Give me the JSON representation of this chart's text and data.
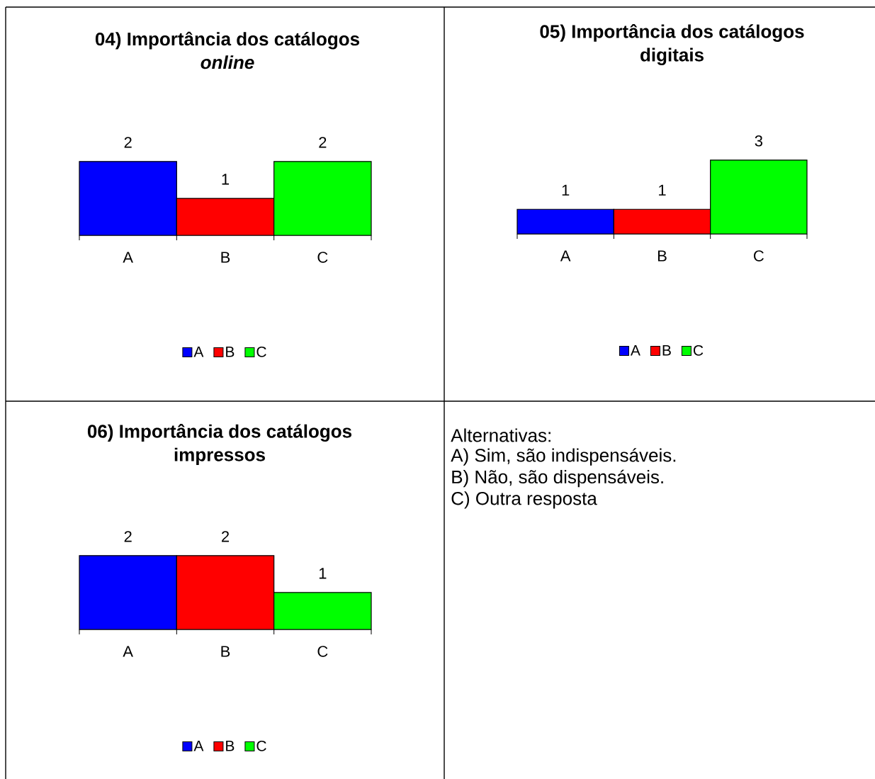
{
  "chart_data": [
    {
      "type": "bar",
      "title": "04) Importância dos catálogos *online*",
      "categories": [
        "A",
        "B",
        "C"
      ],
      "series": [
        {
          "name": "A",
          "color": "#0000ff",
          "values": [
            2,
            null,
            null
          ]
        },
        {
          "name": "B",
          "color": "#ff0000",
          "values": [
            null,
            1,
            null
          ]
        },
        {
          "name": "C",
          "color": "#00ff00",
          "values": [
            null,
            null,
            2
          ]
        }
      ],
      "stacked": true,
      "data_labels": true,
      "legend": "bottom"
    },
    {
      "type": "bar",
      "title": "05) Importância dos catálogos digitais",
      "categories": [
        "A",
        "B",
        "C"
      ],
      "series": [
        {
          "name": "A",
          "color": "#0000ff",
          "values": [
            1,
            null,
            null
          ]
        },
        {
          "name": "B",
          "color": "#ff0000",
          "values": [
            null,
            1,
            null
          ]
        },
        {
          "name": "C",
          "color": "#00ff00",
          "values": [
            null,
            null,
            3
          ]
        }
      ],
      "stacked": true,
      "data_labels": true,
      "legend": "bottom"
    },
    {
      "type": "bar",
      "title": "06) Importância dos catálogos impressos",
      "categories": [
        "A",
        "B",
        "C"
      ],
      "series": [
        {
          "name": "A",
          "color": "#0000ff",
          "values": [
            2,
            null,
            null
          ]
        },
        {
          "name": "B",
          "color": "#ff0000",
          "values": [
            null,
            2,
            null
          ]
        },
        {
          "name": "C",
          "color": "#00ff00",
          "values": [
            null,
            null,
            1
          ]
        }
      ],
      "stacked": true,
      "data_labels": true,
      "legend": "bottom"
    },
    {
      "type": "other",
      "title": "Alternativas:",
      "annotations": [
        "A) Sim, são indispensáveis.",
        "B) Não, são dispensáveis.",
        "C) Outra resposta"
      ]
    }
  ]
}
